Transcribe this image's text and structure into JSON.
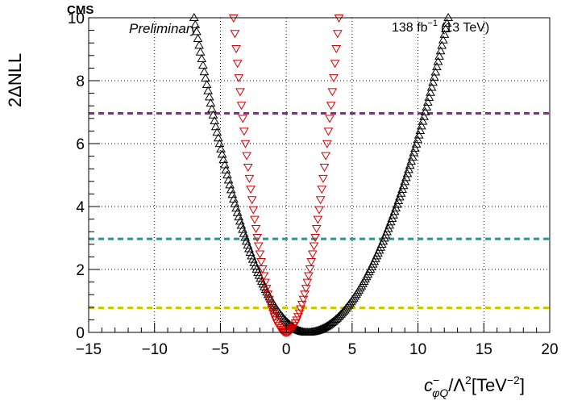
{
  "chart_data": {
    "type": "scatter",
    "header": {
      "experiment": "CMS",
      "status": "Preliminary",
      "luminosity": "138 fb",
      "luminosity_exponent": "−1",
      "energy": "(13 TeV)"
    },
    "xlabel": {
      "symbol": "c",
      "superscript": "−",
      "subscript": "φQ",
      "rest": "/Λ",
      "rest_exponent": "2",
      "unit": "[TeV",
      "unit_exponent": "−2",
      "unit_close": "]"
    },
    "ylabel": "2ΔNLL",
    "xlim": [
      -15,
      20
    ],
    "ylim": [
      0,
      10
    ],
    "xticks": [
      -15,
      -10,
      -5,
      0,
      5,
      10,
      15,
      20
    ],
    "xtick_labels": [
      "−15",
      "−10",
      "−5",
      "0",
      "5",
      "10",
      "15",
      "20"
    ],
    "yticks": [
      0,
      2,
      4,
      6,
      8,
      10
    ],
    "ytick_labels": [
      "0",
      "2",
      "4",
      "6",
      "8",
      "10"
    ],
    "grid": true,
    "series": [
      {
        "marker": "open-triangle-up",
        "color": "#000000",
        "shape": "parabola",
        "min_x": 1.6,
        "min_y": 0.0,
        "crossings_at_y_10": [
          -7.0,
          12.3
        ],
        "x_range": [
          -7.0,
          12.3
        ],
        "n_points": 200
      },
      {
        "marker": "open-triangle-down",
        "color": "#d40000",
        "shape": "parabola",
        "min_x": 0.0,
        "min_y": 0.0,
        "crossings_at_y_10": [
          -4.0,
          4.0
        ],
        "x_range": [
          -4.0,
          4.0
        ],
        "n_points": 81
      }
    ],
    "reference_lines": [
      {
        "y": 6.96,
        "color": "#8b2a8b",
        "style": "dashed"
      },
      {
        "y": 2.97,
        "color": "#2a948b",
        "style": "dashed"
      },
      {
        "y": 0.78,
        "color": "#c8c800",
        "style": "dashed"
      }
    ]
  }
}
